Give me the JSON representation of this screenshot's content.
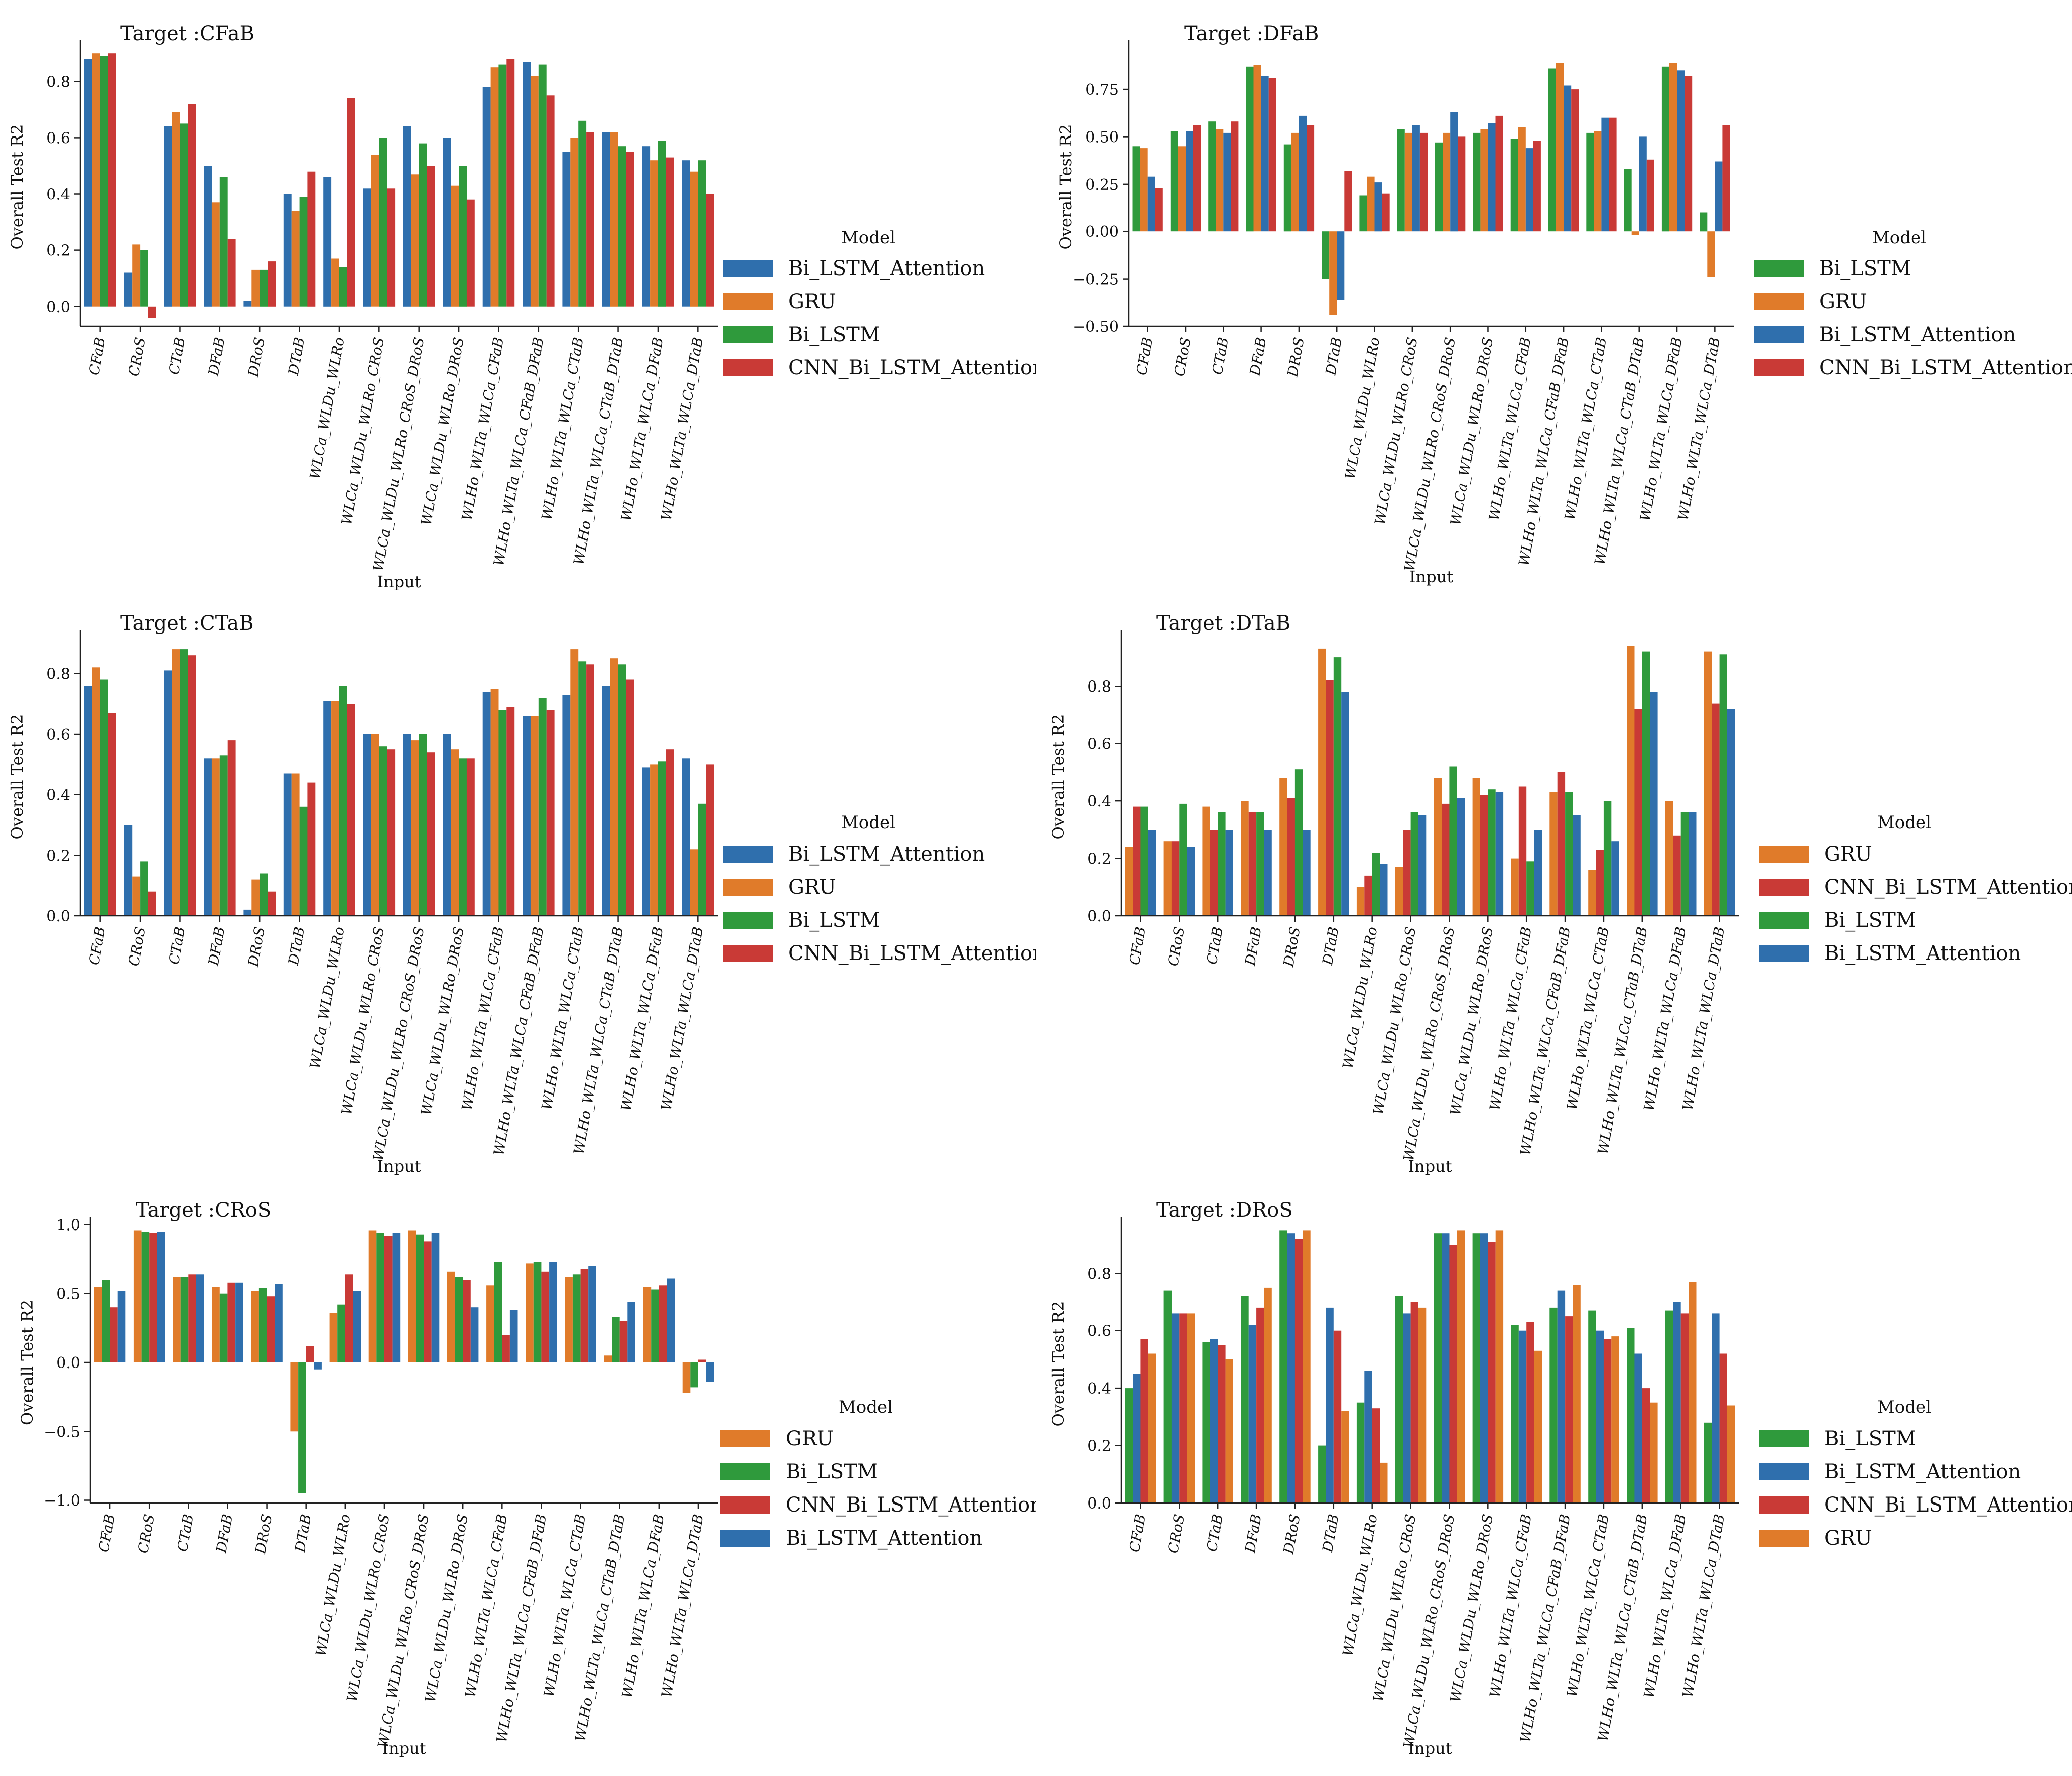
{
  "figure": {
    "ylabel": "Overall Test R2",
    "xlabel": "Input",
    "legend_title": "Model"
  },
  "model_colors": {
    "Bi_LSTM_Attention": "#2f6fad",
    "GRU": "#e07b2a",
    "Bi_LSTM": "#2f9a3c",
    "CNN_Bi_LSTM_Attention": "#c93a36"
  },
  "chart_data": [
    {
      "type": "bar",
      "title": "Target :CFaB",
      "xlabel": "Input",
      "ylabel": "Overall Test R2",
      "ylim": [
        -0.07,
        0.92
      ],
      "yticks": [
        0.0,
        0.2,
        0.4,
        0.6,
        0.8
      ],
      "ytick_labels": [
        "0.0",
        "0.2",
        "0.4",
        "0.6",
        "0.8"
      ],
      "categories": [
        "CFaB",
        "CRoS",
        "CTaB",
        "DFaB",
        "DRoS",
        "DTaB",
        "WLCa_WLDu_WLRo",
        "WLCa_WLDu_WLRo_CRoS",
        "WLCa_WLDu_WLRo_CRoS_DRoS",
        "WLCa_WLDu_WLRo_DRoS",
        "WLHo_WLTa_WLCa_CFaB",
        "WLHo_WLTa_WLCa_CFaB_DFaB",
        "WLHo_WLTa_WLCa_CTaB",
        "WLHo_WLTa_WLCa_CTaB_DTaB",
        "WLHo_WLTa_WLCa_DFaB",
        "WLHo_WLTa_WLCa_DTaB"
      ],
      "legend": [
        "Bi_LSTM_Attention",
        "GRU",
        "Bi_LSTM",
        "CNN_Bi_LSTM_Attention"
      ],
      "series": [
        {
          "name": "Bi_LSTM_Attention",
          "values": [
            0.88,
            0.12,
            0.64,
            0.5,
            0.02,
            0.4,
            0.46,
            0.42,
            0.64,
            0.6,
            0.78,
            0.87,
            0.55,
            0.62,
            0.57,
            0.52
          ]
        },
        {
          "name": "GRU",
          "values": [
            0.9,
            0.22,
            0.69,
            0.37,
            0.13,
            0.34,
            0.17,
            0.54,
            0.47,
            0.43,
            0.85,
            0.82,
            0.6,
            0.62,
            0.52,
            0.48
          ]
        },
        {
          "name": "Bi_LSTM",
          "values": [
            0.89,
            0.2,
            0.65,
            0.46,
            0.13,
            0.39,
            0.14,
            0.6,
            0.58,
            0.5,
            0.86,
            0.86,
            0.66,
            0.57,
            0.59,
            0.52
          ]
        },
        {
          "name": "CNN_Bi_LSTM_Attention",
          "values": [
            0.9,
            -0.04,
            0.72,
            0.24,
            0.16,
            0.48,
            0.74,
            0.42,
            0.5,
            0.38,
            0.88,
            0.75,
            0.62,
            0.55,
            0.53,
            0.4
          ]
        }
      ]
    },
    {
      "type": "bar",
      "title": "Target :DFaB",
      "xlabel": "Input",
      "ylabel": "Overall Test R2",
      "ylim": [
        -0.5,
        0.97
      ],
      "yticks": [
        -0.5,
        -0.25,
        0.0,
        0.25,
        0.5,
        0.75
      ],
      "ytick_labels": [
        "−0.50",
        "−0.25",
        "0.00",
        "0.25",
        "0.50",
        "0.75"
      ],
      "categories": [
        "CFaB",
        "CRoS",
        "CTaB",
        "DFaB",
        "DRoS",
        "DTaB",
        "WLCa_WLDu_WLRo",
        "WLCa_WLDu_WLRo_CRoS",
        "WLCa_WLDu_WLRo_CRoS_DRoS",
        "WLCa_WLDu_WLRo_DRoS",
        "WLHo_WLTa_WLCa_CFaB",
        "WLHo_WLTa_WLCa_CFaB_DFaB",
        "WLHo_WLTa_WLCa_CTaB",
        "WLHo_WLTa_WLCa_CTaB_DTaB",
        "WLHo_WLTa_WLCa_DFaB",
        "WLHo_WLTa_WLCa_DTaB"
      ],
      "legend": [
        "Bi_LSTM",
        "GRU",
        "Bi_LSTM_Attention",
        "CNN_Bi_LSTM_Attention"
      ],
      "series": [
        {
          "name": "Bi_LSTM",
          "values": [
            0.45,
            0.53,
            0.58,
            0.87,
            0.46,
            -0.25,
            0.19,
            0.54,
            0.47,
            0.52,
            0.49,
            0.86,
            0.52,
            0.33,
            0.87,
            0.1
          ]
        },
        {
          "name": "GRU",
          "values": [
            0.44,
            0.45,
            0.54,
            0.88,
            0.52,
            -0.44,
            0.29,
            0.52,
            0.52,
            0.54,
            0.55,
            0.89,
            0.53,
            -0.02,
            0.89,
            -0.24
          ]
        },
        {
          "name": "Bi_LSTM_Attention",
          "values": [
            0.29,
            0.53,
            0.52,
            0.82,
            0.61,
            -0.36,
            0.26,
            0.56,
            0.63,
            0.57,
            0.44,
            0.77,
            0.6,
            0.5,
            0.85,
            0.37
          ]
        },
        {
          "name": "CNN_Bi_LSTM_Attention",
          "values": [
            0.23,
            0.56,
            0.58,
            0.81,
            0.56,
            0.32,
            0.2,
            0.52,
            0.5,
            0.61,
            0.48,
            0.75,
            0.6,
            0.38,
            0.82,
            0.56
          ]
        }
      ]
    },
    {
      "type": "bar",
      "title": "Target :CTaB",
      "xlabel": "Input",
      "ylabel": "Overall Test R2",
      "ylim": [
        0.0,
        0.92
      ],
      "yticks": [
        0.0,
        0.2,
        0.4,
        0.6,
        0.8
      ],
      "ytick_labels": [
        "0.0",
        "0.2",
        "0.4",
        "0.6",
        "0.8"
      ],
      "categories": [
        "CFaB",
        "CRoS",
        "CTaB",
        "DFaB",
        "DRoS",
        "DTaB",
        "WLCa_WLDu_WLRo",
        "WLCa_WLDu_WLRo_CRoS",
        "WLCa_WLDu_WLRo_CRoS_DRoS",
        "WLCa_WLDu_WLRo_DRoS",
        "WLHo_WLTa_WLCa_CFaB",
        "WLHo_WLTa_WLCa_CFaB_DFaB",
        "WLHo_WLTa_WLCa_CTaB",
        "WLHo_WLTa_WLCa_CTaB_DTaB",
        "WLHo_WLTa_WLCa_DFaB",
        "WLHo_WLTa_WLCa_DTaB"
      ],
      "legend": [
        "Bi_LSTM_Attention",
        "GRU",
        "Bi_LSTM",
        "CNN_Bi_LSTM_Attention"
      ],
      "series": [
        {
          "name": "Bi_LSTM_Attention",
          "values": [
            0.76,
            0.3,
            0.81,
            0.52,
            0.02,
            0.47,
            0.71,
            0.6,
            0.6,
            0.6,
            0.74,
            0.66,
            0.73,
            0.76,
            0.49,
            0.52
          ]
        },
        {
          "name": "GRU",
          "values": [
            0.82,
            0.13,
            0.88,
            0.52,
            0.12,
            0.47,
            0.71,
            0.6,
            0.58,
            0.55,
            0.75,
            0.66,
            0.88,
            0.85,
            0.5,
            0.22
          ]
        },
        {
          "name": "Bi_LSTM",
          "values": [
            0.78,
            0.18,
            0.88,
            0.53,
            0.14,
            0.36,
            0.76,
            0.56,
            0.6,
            0.52,
            0.68,
            0.72,
            0.84,
            0.83,
            0.51,
            0.37
          ]
        },
        {
          "name": "CNN_Bi_LSTM_Attention",
          "values": [
            0.67,
            0.08,
            0.86,
            0.58,
            0.08,
            0.44,
            0.7,
            0.55,
            0.54,
            0.52,
            0.69,
            0.68,
            0.83,
            0.78,
            0.55,
            0.5
          ]
        }
      ]
    },
    {
      "type": "bar",
      "title": "Target :DTaB",
      "xlabel": "Input",
      "ylabel": "Overall Test R2",
      "ylim": [
        0.0,
        0.97
      ],
      "yticks": [
        0.0,
        0.2,
        0.4,
        0.6,
        0.8
      ],
      "ytick_labels": [
        "0.0",
        "0.2",
        "0.4",
        "0.6",
        "0.8"
      ],
      "categories": [
        "CFaB",
        "CRoS",
        "CTaB",
        "DFaB",
        "DRoS",
        "DTaB",
        "WLCa_WLDu_WLRo",
        "WLCa_WLDu_WLRo_CRoS",
        "WLCa_WLDu_WLRo_CRoS_DRoS",
        "WLCa_WLDu_WLRo_DRoS",
        "WLHo_WLTa_WLCa_CFaB",
        "WLHo_WLTa_WLCa_CFaB_DFaB",
        "WLHo_WLTa_WLCa_CTaB",
        "WLHo_WLTa_WLCa_CTaB_DTaB",
        "WLHo_WLTa_WLCa_DFaB",
        "WLHo_WLTa_WLCa_DTaB"
      ],
      "legend": [
        "GRU",
        "CNN_Bi_LSTM_Attention",
        "Bi_LSTM",
        "Bi_LSTM_Attention"
      ],
      "series": [
        {
          "name": "GRU",
          "values": [
            0.24,
            0.26,
            0.38,
            0.4,
            0.48,
            0.93,
            0.1,
            0.17,
            0.48,
            0.48,
            0.2,
            0.43,
            0.16,
            0.94,
            0.4,
            0.92
          ]
        },
        {
          "name": "CNN_Bi_LSTM_Attention",
          "values": [
            0.38,
            0.26,
            0.3,
            0.36,
            0.41,
            0.82,
            0.14,
            0.3,
            0.39,
            0.42,
            0.45,
            0.5,
            0.23,
            0.72,
            0.28,
            0.74
          ]
        },
        {
          "name": "Bi_LSTM",
          "values": [
            0.38,
            0.39,
            0.36,
            0.36,
            0.51,
            0.9,
            0.22,
            0.36,
            0.52,
            0.44,
            0.19,
            0.43,
            0.4,
            0.92,
            0.36,
            0.91
          ]
        },
        {
          "name": "Bi_LSTM_Attention",
          "values": [
            0.3,
            0.24,
            0.3,
            0.3,
            0.3,
            0.78,
            0.18,
            0.35,
            0.41,
            0.43,
            0.3,
            0.35,
            0.26,
            0.78,
            0.36,
            0.72
          ]
        }
      ]
    },
    {
      "type": "bar",
      "title": "Target :CRoS",
      "xlabel": "Input",
      "ylabel": "Overall Test R2",
      "ylim": [
        -1.02,
        1.02
      ],
      "yticks": [
        -1.0,
        -0.5,
        0.0,
        0.5,
        1.0
      ],
      "ytick_labels": [
        "−1.0",
        "−0.5",
        "0.0",
        "0.5",
        "1.0"
      ],
      "categories": [
        "CFaB",
        "CRoS",
        "CTaB",
        "DFaB",
        "DRoS",
        "DTaB",
        "WLCa_WLDu_WLRo",
        "WLCa_WLDu_WLRo_CRoS",
        "WLCa_WLDu_WLRo_CRoS_DRoS",
        "WLCa_WLDu_WLRo_DRoS",
        "WLHo_WLTa_WLCa_CFaB",
        "WLHo_WLTa_WLCa_CFaB_DFaB",
        "WLHo_WLTa_WLCa_CTaB",
        "WLHo_WLTa_WLCa_CTaB_DTaB",
        "WLHo_WLTa_WLCa_DFaB",
        "WLHo_WLTa_WLCa_DTaB"
      ],
      "legend": [
        "GRU",
        "Bi_LSTM",
        "CNN_Bi_LSTM_Attention",
        "Bi_LSTM_Attention"
      ],
      "series": [
        {
          "name": "GRU",
          "values": [
            0.55,
            0.96,
            0.62,
            0.55,
            0.52,
            -0.5,
            0.36,
            0.96,
            0.96,
            0.66,
            0.56,
            0.72,
            0.62,
            0.05,
            0.55,
            -0.22
          ]
        },
        {
          "name": "Bi_LSTM",
          "values": [
            0.6,
            0.95,
            0.62,
            0.5,
            0.54,
            -0.95,
            0.42,
            0.94,
            0.93,
            0.62,
            0.73,
            0.73,
            0.64,
            0.33,
            0.53,
            -0.18
          ]
        },
        {
          "name": "CNN_Bi_LSTM_Attention",
          "values": [
            0.4,
            0.94,
            0.64,
            0.58,
            0.48,
            0.12,
            0.64,
            0.92,
            0.88,
            0.6,
            0.2,
            0.66,
            0.68,
            0.3,
            0.56,
            0.02
          ]
        },
        {
          "name": "Bi_LSTM_Attention",
          "values": [
            0.52,
            0.95,
            0.64,
            0.58,
            0.57,
            -0.05,
            0.52,
            0.94,
            0.94,
            0.4,
            0.38,
            0.73,
            0.7,
            0.44,
            0.61,
            -0.14
          ]
        }
      ]
    },
    {
      "type": "bar",
      "title": "Target :DRoS",
      "xlabel": "Input",
      "ylabel": "Overall Test R2",
      "ylim": [
        0.0,
        0.97
      ],
      "yticks": [
        0.0,
        0.2,
        0.4,
        0.6,
        0.8
      ],
      "ytick_labels": [
        "0.0",
        "0.2",
        "0.4",
        "0.6",
        "0.8"
      ],
      "categories": [
        "CFaB",
        "CRoS",
        "CTaB",
        "DFaB",
        "DRoS",
        "DTaB",
        "WLCa_WLDu_WLRo",
        "WLCa_WLDu_WLRo_CRoS",
        "WLCa_WLDu_WLRo_CRoS_DRoS",
        "WLCa_WLDu_WLRo_DRoS",
        "WLHo_WLTa_WLCa_CFaB",
        "WLHo_WLTa_WLCa_CFaB_DFaB",
        "WLHo_WLTa_WLCa_CTaB",
        "WLHo_WLTa_WLCa_CTaB_DTaB",
        "WLHo_WLTa_WLCa_DFaB",
        "WLHo_WLTa_WLCa_DTaB"
      ],
      "legend": [
        "Bi_LSTM",
        "Bi_LSTM_Attention",
        "CNN_Bi_LSTM_Attention",
        "GRU"
      ],
      "series": [
        {
          "name": "Bi_LSTM",
          "values": [
            0.4,
            0.74,
            0.56,
            0.72,
            0.95,
            0.2,
            0.35,
            0.72,
            0.94,
            0.94,
            0.62,
            0.68,
            0.67,
            0.61,
            0.67,
            0.28
          ]
        },
        {
          "name": "Bi_LSTM_Attention",
          "values": [
            0.45,
            0.66,
            0.57,
            0.62,
            0.94,
            0.68,
            0.46,
            0.66,
            0.94,
            0.94,
            0.6,
            0.74,
            0.6,
            0.52,
            0.7,
            0.66
          ]
        },
        {
          "name": "CNN_Bi_LSTM_Attention",
          "values": [
            0.57,
            0.66,
            0.55,
            0.68,
            0.92,
            0.6,
            0.33,
            0.7,
            0.9,
            0.91,
            0.63,
            0.65,
            0.57,
            0.4,
            0.66,
            0.52
          ]
        },
        {
          "name": "GRU",
          "values": [
            0.52,
            0.66,
            0.5,
            0.75,
            0.95,
            0.32,
            0.14,
            0.68,
            0.95,
            0.95,
            0.53,
            0.76,
            0.58,
            0.35,
            0.77,
            0.34
          ]
        }
      ]
    }
  ]
}
